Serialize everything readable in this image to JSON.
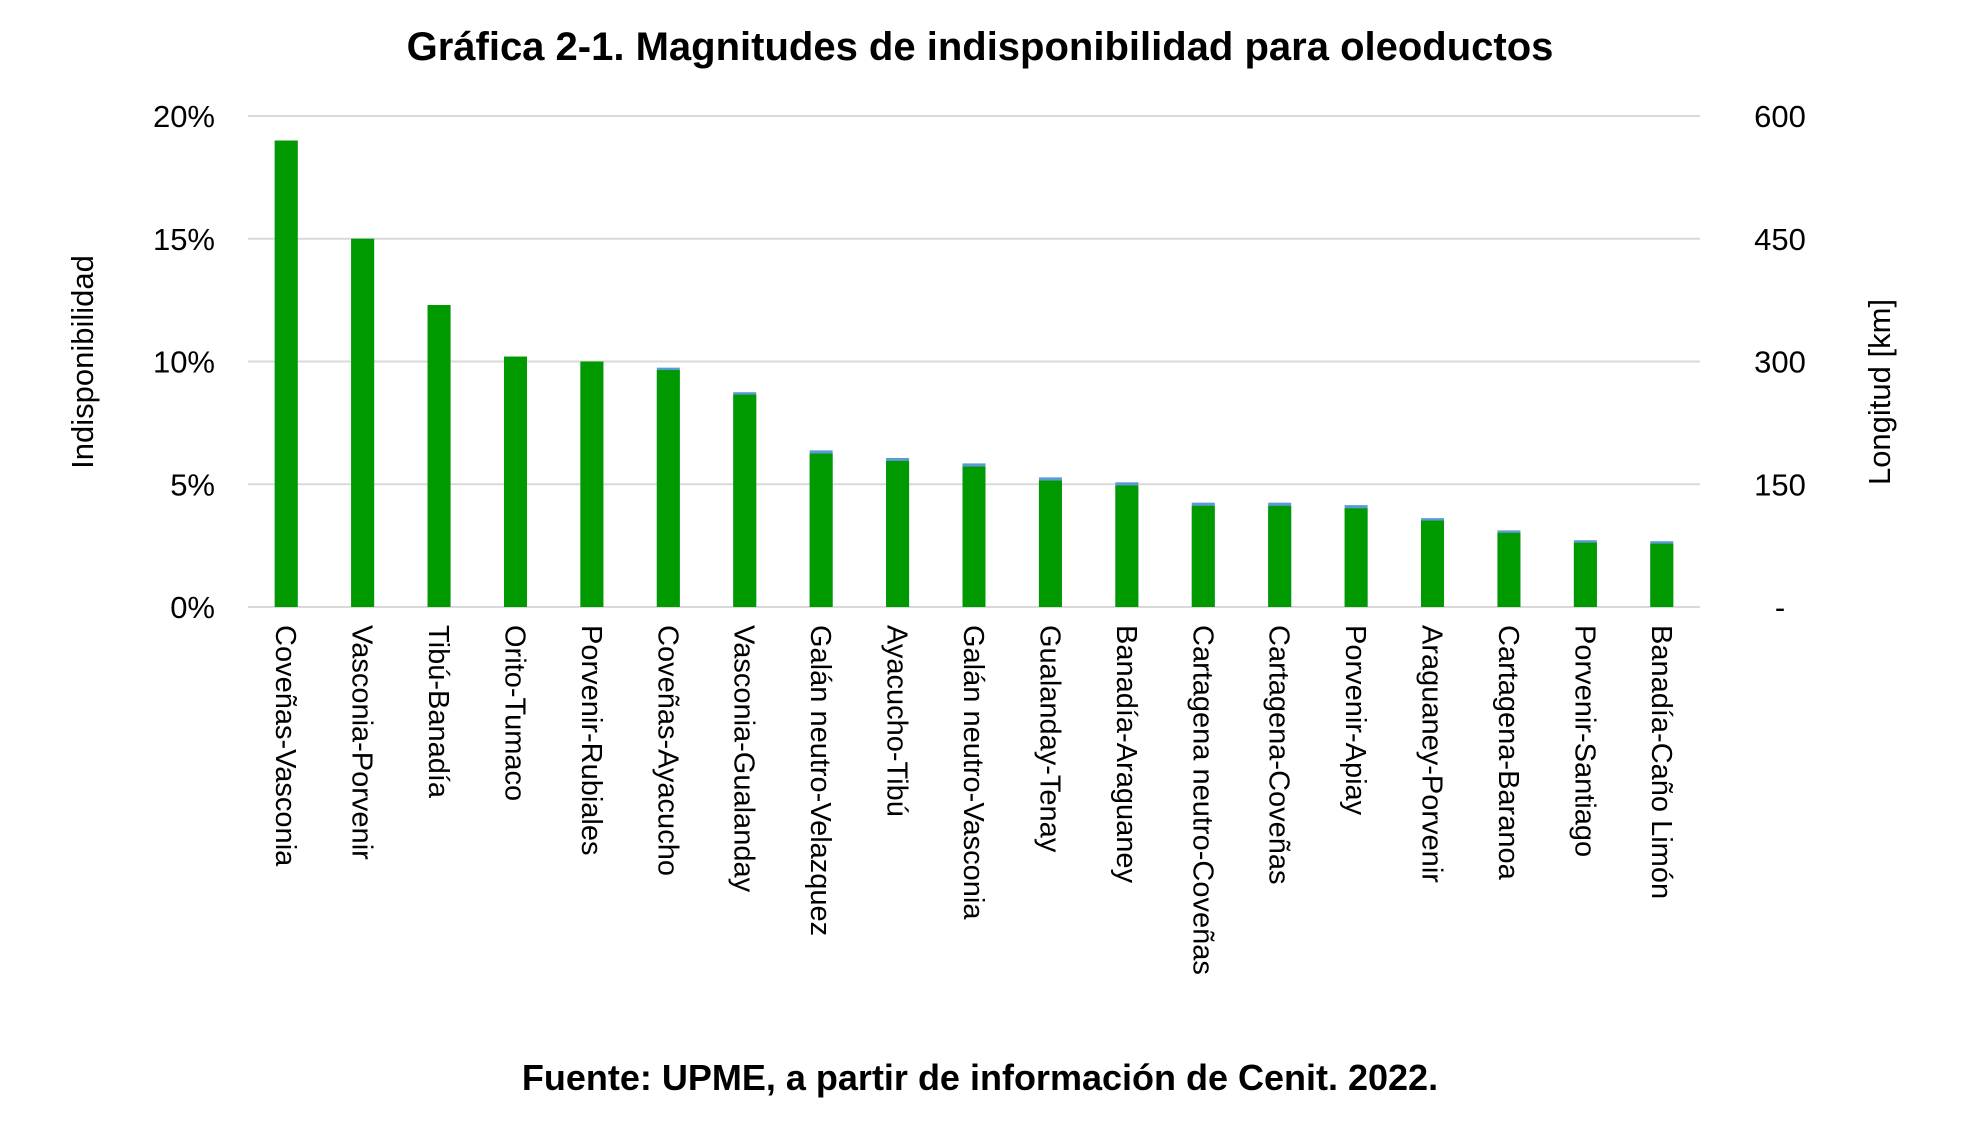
{
  "chart_data": {
    "type": "bar",
    "title": "Gráfica 2-1. Magnitudes de indisponibilidad para oleoductos",
    "source": "Fuente: UPME, a partir de información de Cenit. 2022.",
    "ylabel": "Indisponibilidad",
    "y2label": "Longitud [km]",
    "ylim": [
      0,
      0.2
    ],
    "y2lim": [
      0,
      600
    ],
    "y_ticks": [
      "0%",
      "5%",
      "10%",
      "15%",
      "20%"
    ],
    "y2_ticks": [
      "-",
      "150",
      "300",
      "450",
      "600"
    ],
    "grid": true,
    "categories": [
      "Coveñas-Vasconia",
      "Vasconia-Porvenir",
      "Tibú-Banadía",
      "Orito-Tumaco",
      "Porvenir-Rubiales",
      "Coveñas-Ayacucho",
      "Vasconia-Gualanday",
      "Galán neutro-Velazquez",
      "Ayacucho-Tibú",
      "Galán neutro-Vasconia",
      "Gualanday-Tenay",
      "Banadía-Araguaney",
      "Cartagena neutro-Coveñas",
      "Cartagena-Coveñas",
      "Porvenir-Apiay",
      "Araguaney-Porvenir",
      "Cartagena-Baranoa",
      "Porvenir-Santiago",
      "Banadía-Caño Limón"
    ],
    "series": [
      {
        "axis": "left",
        "color": "#009900",
        "values": [
          0.19,
          0.15,
          0.123,
          0.102,
          0.1,
          0.0965,
          0.0865,
          0.0625,
          0.0595,
          0.0572,
          0.0515,
          0.0495,
          0.0412,
          0.0412,
          0.0402,
          0.0352,
          0.0302,
          0.0262,
          0.0258
        ]
      },
      {
        "axis": "left",
        "color": "#5B9BD5",
        "values": [
          0.19,
          0.15,
          0.123,
          0.102,
          0.1,
          0.0975,
          0.0875,
          0.0638,
          0.0607,
          0.0585,
          0.0528,
          0.0508,
          0.0425,
          0.0425,
          0.0415,
          0.0362,
          0.0312,
          0.0272,
          0.0268
        ]
      }
    ],
    "colors": {
      "grid": "#D9D9D9",
      "text": "#000000"
    }
  }
}
